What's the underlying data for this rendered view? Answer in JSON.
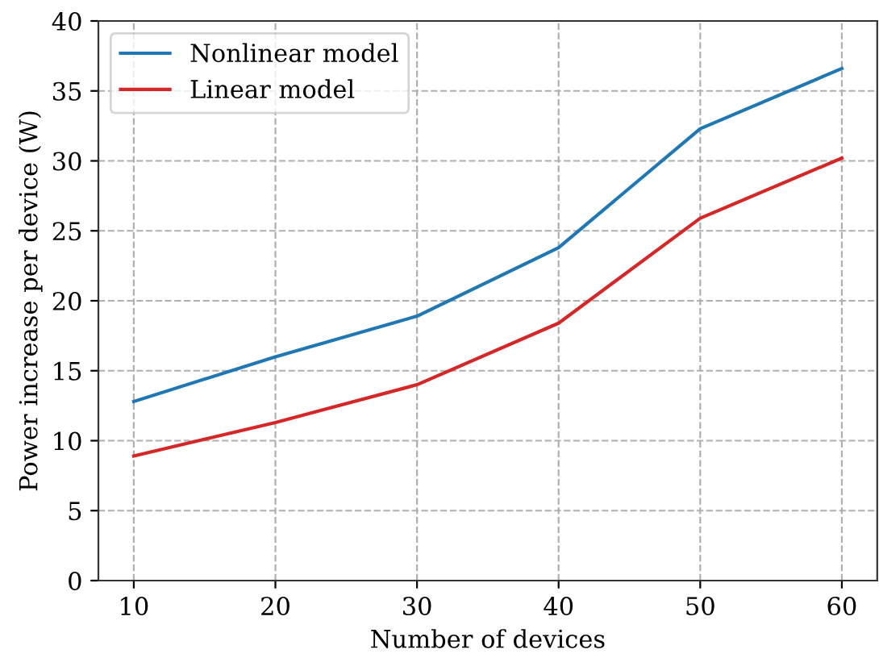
{
  "chart_data": {
    "type": "line",
    "xlabel": "Number of devices",
    "ylabel": "Power increase per device (W)",
    "x": [
      10,
      20,
      30,
      40,
      50,
      60
    ],
    "series": [
      {
        "name": "Nonlinear model",
        "color": "#1f77b4",
        "values": [
          12.8,
          16.0,
          18.9,
          23.8,
          32.3,
          36.6
        ]
      },
      {
        "name": "Linear model",
        "color": "#d62728",
        "values": [
          8.9,
          11.3,
          14.0,
          18.4,
          25.9,
          30.2
        ]
      }
    ],
    "xlim": [
      7.5,
      62.5
    ],
    "xticks": [
      10,
      20,
      30,
      40,
      50,
      60
    ],
    "ylim": [
      0,
      40
    ],
    "yticks": [
      0,
      5,
      10,
      15,
      20,
      25,
      30,
      35,
      40
    ],
    "grid": true,
    "legend": "top left",
    "line_style": "solid",
    "marker": "none"
  }
}
